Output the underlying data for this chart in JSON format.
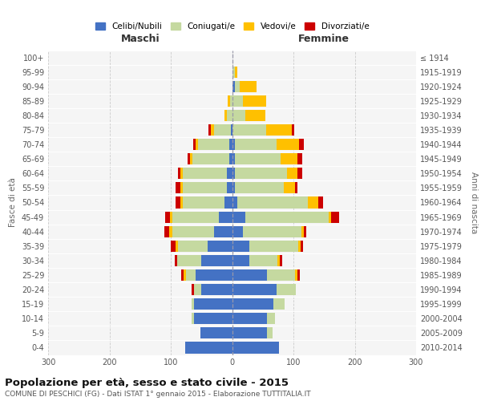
{
  "age_groups": [
    "0-4",
    "5-9",
    "10-14",
    "15-19",
    "20-24",
    "25-29",
    "30-34",
    "35-39",
    "40-44",
    "45-49",
    "50-54",
    "55-59",
    "60-64",
    "65-69",
    "70-74",
    "75-79",
    "80-84",
    "85-89",
    "90-94",
    "95-99",
    "100+"
  ],
  "birth_years": [
    "2010-2014",
    "2005-2009",
    "2000-2004",
    "1995-1999",
    "1990-1994",
    "1985-1989",
    "1980-1984",
    "1975-1979",
    "1970-1974",
    "1965-1969",
    "1960-1964",
    "1955-1959",
    "1950-1954",
    "1945-1949",
    "1940-1944",
    "1935-1939",
    "1930-1934",
    "1925-1929",
    "1920-1924",
    "1915-1919",
    "≤ 1914"
  ],
  "male_celibi": [
    77,
    52,
    62,
    62,
    50,
    60,
    50,
    40,
    30,
    22,
    12,
    8,
    8,
    5,
    5,
    2,
    0,
    0,
    0,
    0,
    0
  ],
  "male_coniugati": [
    0,
    0,
    4,
    4,
    12,
    15,
    40,
    48,
    68,
    75,
    68,
    72,
    72,
    60,
    50,
    28,
    8,
    3,
    0,
    0,
    0
  ],
  "male_vedovi": [
    0,
    0,
    0,
    0,
    0,
    4,
    0,
    4,
    4,
    4,
    4,
    4,
    4,
    4,
    4,
    4,
    4,
    4,
    0,
    0,
    0
  ],
  "male_divorziati": [
    0,
    0,
    0,
    0,
    4,
    4,
    4,
    8,
    8,
    8,
    8,
    8,
    4,
    4,
    4,
    4,
    0,
    0,
    0,
    0,
    0
  ],
  "fem_nubili": [
    77,
    57,
    57,
    67,
    72,
    57,
    28,
    28,
    18,
    22,
    8,
    4,
    4,
    4,
    4,
    0,
    0,
    0,
    4,
    0,
    0
  ],
  "fem_coniugate": [
    0,
    9,
    13,
    18,
    32,
    46,
    46,
    80,
    95,
    135,
    115,
    80,
    85,
    75,
    68,
    55,
    22,
    18,
    8,
    4,
    0
  ],
  "fem_vedove": [
    0,
    0,
    0,
    0,
    0,
    4,
    4,
    4,
    4,
    4,
    18,
    18,
    18,
    28,
    37,
    42,
    32,
    38,
    28,
    4,
    0
  ],
  "fem_divorziate": [
    0,
    0,
    0,
    0,
    0,
    4,
    4,
    4,
    4,
    13,
    8,
    4,
    8,
    8,
    8,
    4,
    0,
    0,
    0,
    0,
    0
  ],
  "colors": {
    "celibi": "#4472c4",
    "coniugati": "#c5d9a0",
    "vedovi": "#ffc000",
    "divorziati": "#cc0000"
  },
  "title": "Popolazione per età, sesso e stato civile - 2015",
  "subtitle": "COMUNE DI PESCHICI (FG) - Dati ISTAT 1° gennaio 2015 - Elaborazione TUTTITALIA.IT",
  "xlabel_left": "Maschi",
  "xlabel_right": "Femmine",
  "ylabel_left": "Fasce di età",
  "ylabel_right": "Anni di nascita",
  "xlim": 300,
  "background_color": "#ffffff",
  "plot_bg_color": "#f5f5f5",
  "grid_color": "#cccccc",
  "legend_labels": [
    "Celibi/Nubili",
    "Coniugati/e",
    "Vedovi/e",
    "Divorziati/e"
  ]
}
